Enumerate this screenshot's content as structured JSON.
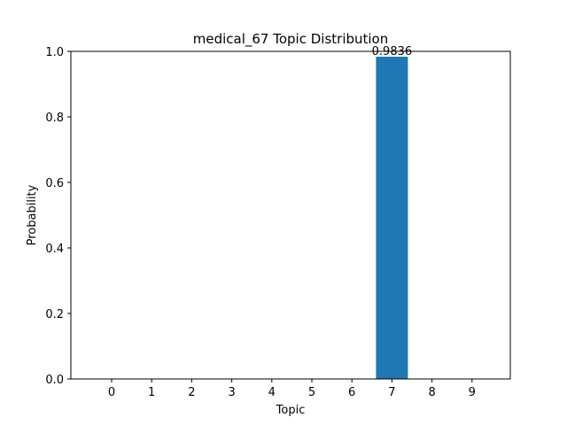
{
  "chart_data": {
    "type": "bar",
    "title": "medical_67 Topic Distribution",
    "xlabel": "Topic",
    "ylabel": "Probability",
    "categories": [
      "0",
      "1",
      "2",
      "3",
      "4",
      "5",
      "6",
      "7",
      "8",
      "9"
    ],
    "values": [
      0,
      0,
      0,
      0,
      0,
      0,
      0,
      0.9836,
      0,
      0
    ],
    "data_labels": [
      "",
      "",
      "",
      "",
      "",
      "",
      "",
      "0.9836",
      "",
      ""
    ],
    "ylim": [
      0,
      1.0
    ],
    "yticks": [
      "0.0",
      "0.2",
      "0.4",
      "0.6",
      "0.8",
      "1.0"
    ],
    "grid": false,
    "bar_color": "#1f77b4"
  }
}
